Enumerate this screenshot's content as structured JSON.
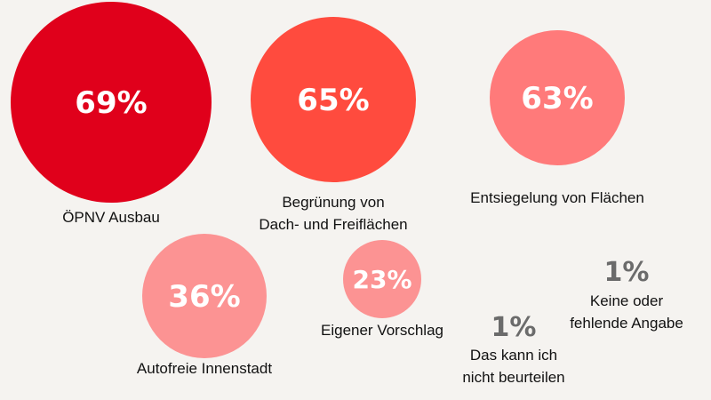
{
  "chart_data": {
    "type": "bubble",
    "unit": "%",
    "items": [
      {
        "value": 69,
        "value_label": "69%",
        "label": "ÖPNV Ausbau",
        "color": "#e0001b"
      },
      {
        "value": 65,
        "value_label": "65%",
        "label": "Begrünung von Dach- und Freiflächen",
        "label_lines": [
          "Begrünung von",
          "Dach- und Freiflächen"
        ],
        "color": "#ff4b3e"
      },
      {
        "value": 63,
        "value_label": "63%",
        "label": "Entsiegelung von Flächen",
        "color": "#ff7a7a"
      },
      {
        "value": 36,
        "value_label": "36%",
        "label": "Autofreie Innenstadt",
        "color": "#fc9393"
      },
      {
        "value": 23,
        "value_label": "23%",
        "label": "Eigener Vorschlag",
        "color": "#fc9393"
      },
      {
        "value": 1,
        "value_label": "1%",
        "label": "Das kann ich nicht beurteilen",
        "label_lines": [
          "Das kann ich",
          "nicht beurteilen"
        ],
        "color": "#6b6b6b"
      },
      {
        "value": 1,
        "value_label": "1%",
        "label": "Keine oder fehlende Angabe",
        "label_lines": [
          "Keine oder",
          "fehlende Angabe"
        ],
        "color": "#6b6b6b"
      }
    ]
  }
}
